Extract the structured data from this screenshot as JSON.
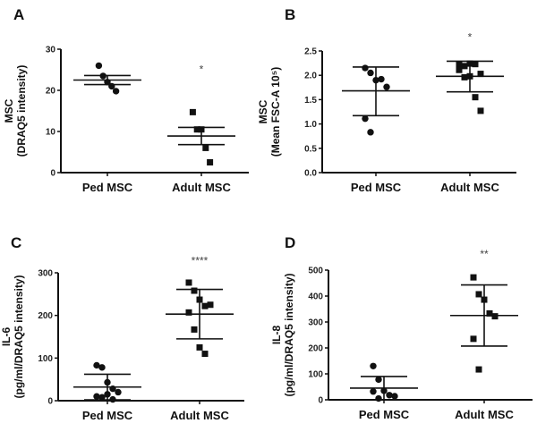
{
  "chart_data": [
    {
      "panel": "A",
      "type": "scatter",
      "ylabel": [
        "MSC",
        "(DRAQ5 intensity)"
      ],
      "ylim": [
        0,
        30
      ],
      "yticks": [
        "0",
        "10",
        "20",
        "30"
      ],
      "categories": [
        "Ped MSC",
        "Adult MSC"
      ],
      "markers": [
        "circle",
        "square"
      ],
      "groups": [
        {
          "values": [
            26,
            23.5,
            22,
            21,
            19.8
          ],
          "mean": 22.5,
          "err": [
            21.4,
            23.6
          ]
        },
        {
          "values": [
            14.7,
            10.5,
            10.5,
            6,
            2.5
          ],
          "mean": 8.9,
          "err": [
            6.8,
            11.0
          ],
          "significance": "*",
          "sig_at": 25.3
        }
      ]
    },
    {
      "panel": "B",
      "type": "scatter",
      "ylabel": [
        "MSC",
        "(Mean FSC-A 10⁵)"
      ],
      "ylim": [
        0,
        2.5
      ],
      "yticks": [
        "0.0",
        "0.5",
        "1.0",
        "1.5",
        "2.0",
        "2.5"
      ],
      "categories": [
        "Ped MSC",
        "Adult MSC"
      ],
      "markers": [
        "circle",
        "square"
      ],
      "groups": [
        {
          "values": [
            2.15,
            2.05,
            1.9,
            1.92,
            1.76,
            1.11,
            0.83
          ],
          "mean": 1.68,
          "err": [
            1.17,
            2.17
          ]
        },
        {
          "values": [
            2.23,
            2.19,
            2.24,
            2.23,
            2.03,
            2.11,
            1.96,
            1.98,
            1.55,
            1.27
          ],
          "mean": 1.98,
          "err": [
            1.66,
            2.29
          ],
          "significance": "*",
          "sig_at": 2.8
        }
      ]
    },
    {
      "panel": "C",
      "type": "scatter",
      "ylabel": [
        "IL-6",
        "(pg/ml/DRAQ5 intensity)"
      ],
      "ylim": [
        0,
        300
      ],
      "yticks": [
        "0",
        "100",
        "200",
        "300"
      ],
      "categories": [
        "Ped MSC",
        "Adult MSC"
      ],
      "markers": [
        "circle",
        "square"
      ],
      "groups": [
        {
          "values": [
            83,
            78,
            43,
            28,
            20,
            10,
            8,
            15,
            3
          ],
          "mean": 32,
          "err": [
            2,
            62
          ]
        },
        {
          "values": [
            277,
            258,
            237,
            222,
            225,
            207,
            167,
            125,
            110
          ],
          "mean": 203,
          "err": [
            145,
            261
          ],
          "significance": "****",
          "sig_at": 330
        }
      ]
    },
    {
      "panel": "D",
      "type": "scatter",
      "ylabel": [
        "IL-8",
        "(pg/ml/DRAQ5 intensity)"
      ],
      "ylim": [
        0,
        500
      ],
      "yticks": [
        "0",
        "100",
        "200",
        "300",
        "400",
        "500"
      ],
      "categories": [
        "Ped MSC",
        "Adult MSC"
      ],
      "markers": [
        "circle",
        "square"
      ],
      "groups": [
        {
          "values": [
            130,
            78,
            35,
            18,
            14,
            32,
            5
          ],
          "mean": 45,
          "err": [
            0,
            90
          ]
        },
        {
          "values": [
            472,
            407,
            386,
            333,
            322,
            235,
            117
          ],
          "mean": 325,
          "err": [
            207,
            443
          ],
          "significance": "**",
          "sig_at": 565
        }
      ]
    }
  ],
  "colors": {
    "marks": "#111111",
    "significance": "#444444"
  }
}
